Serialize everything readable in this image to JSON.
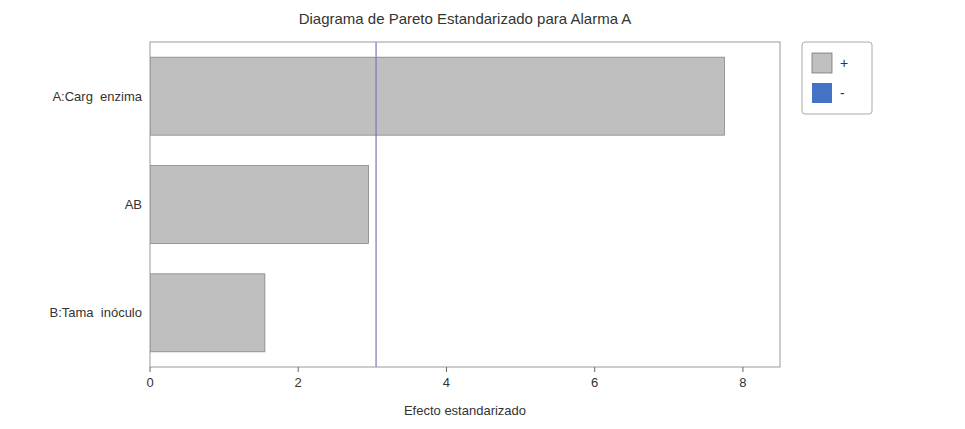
{
  "chart_data": {
    "type": "bar",
    "orientation": "horizontal",
    "title": "Diagrama de Pareto Estandarizado para Alarma A",
    "xlabel": "Efecto estandarizado",
    "categories": [
      "B:Tama  inóculo",
      "AB",
      "A:Carg  enzima"
    ],
    "series": [
      {
        "name": "+",
        "color": "#c0c0c0",
        "colors": [
          "#bfbfbf",
          "#bfbfbf",
          "#bfbfbf"
        ],
        "values": [
          1.55,
          2.95,
          7.75
        ]
      },
      {
        "name": "-",
        "color": "#4472c4",
        "values": [
          null,
          null,
          null
        ]
      }
    ],
    "reference_lines": [
      {
        "value": 3.05,
        "color": "#7777bb"
      }
    ],
    "xlim": [
      0,
      8.5
    ],
    "xticks": [
      0,
      2,
      4,
      6,
      8
    ],
    "grid": false,
    "legend": "right"
  }
}
